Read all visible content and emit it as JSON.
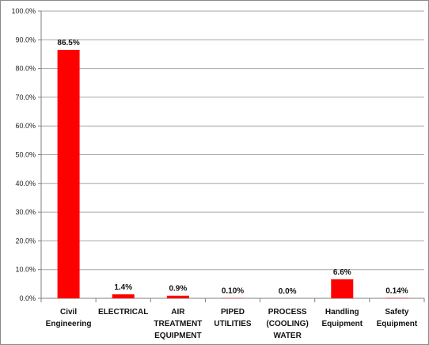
{
  "chart_data": {
    "type": "bar",
    "title": "",
    "xlabel": "",
    "ylabel": "",
    "ylim": [
      0,
      100
    ],
    "yticks": [
      "0.0%",
      "10.0%",
      "20.0%",
      "30.0%",
      "40.0%",
      "50.0%",
      "60.0%",
      "70.0%",
      "80.0%",
      "90.0%",
      "100.0%"
    ],
    "grid": true,
    "legend": "none",
    "bar_color": "#ff0000",
    "categories": [
      [
        "Civil",
        "Engineering"
      ],
      [
        "ELECTRICAL"
      ],
      [
        "AIR",
        "TREATMENT",
        "EQUIPMENT"
      ],
      [
        "PIPED",
        "UTILITIES"
      ],
      [
        "PROCESS",
        "(COOLING)",
        "WATER"
      ],
      [
        "Handling",
        "Equipment"
      ],
      [
        "Safety",
        "Equipment"
      ]
    ],
    "values": [
      86.5,
      1.4,
      0.9,
      0.1,
      0.0,
      6.6,
      0.14
    ],
    "data_labels": [
      "86.5%",
      "1.4%",
      "0.9%",
      "0.10%",
      "0.0%",
      "6.6%",
      "0.14%"
    ]
  }
}
